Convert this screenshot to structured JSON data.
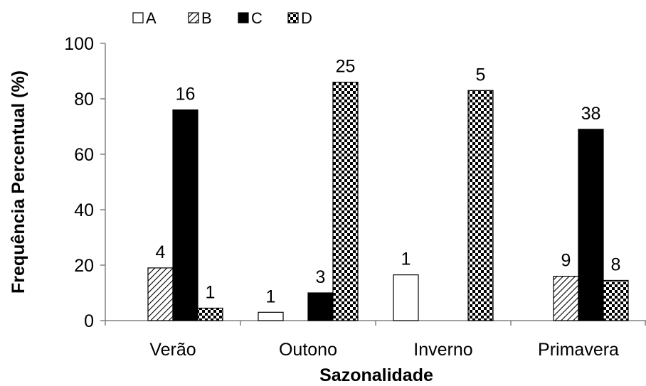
{
  "chart_data": {
    "type": "bar",
    "title": "",
    "xlabel": "Sazonalidade",
    "ylabel": "Frequência Percentual (%)",
    "ylim": [
      0,
      100
    ],
    "yticks": [
      "0",
      "20",
      "40",
      "60",
      "80",
      "100"
    ],
    "categories": [
      "Verão",
      "Outono",
      "Inverno",
      "Primavera"
    ],
    "grid": false,
    "legend_position": "top-left",
    "series": [
      {
        "name": "A",
        "pattern": "hollow",
        "values": [
          null,
          3,
          16.5,
          null
        ],
        "labels": [
          "",
          "1",
          "1",
          ""
        ]
      },
      {
        "name": "B",
        "pattern": "diagonal-hatch",
        "values": [
          19,
          null,
          null,
          16
        ],
        "labels": [
          "4",
          "",
          "",
          "9"
        ]
      },
      {
        "name": "C",
        "pattern": "solid-black",
        "values": [
          76,
          10,
          null,
          69
        ],
        "labels": [
          "16",
          "3",
          "",
          "38"
        ]
      },
      {
        "name": "D",
        "pattern": "checkerboard",
        "values": [
          4.5,
          86,
          83,
          14.5
        ],
        "labels": [
          "1",
          "25",
          "5",
          "8"
        ]
      }
    ]
  }
}
